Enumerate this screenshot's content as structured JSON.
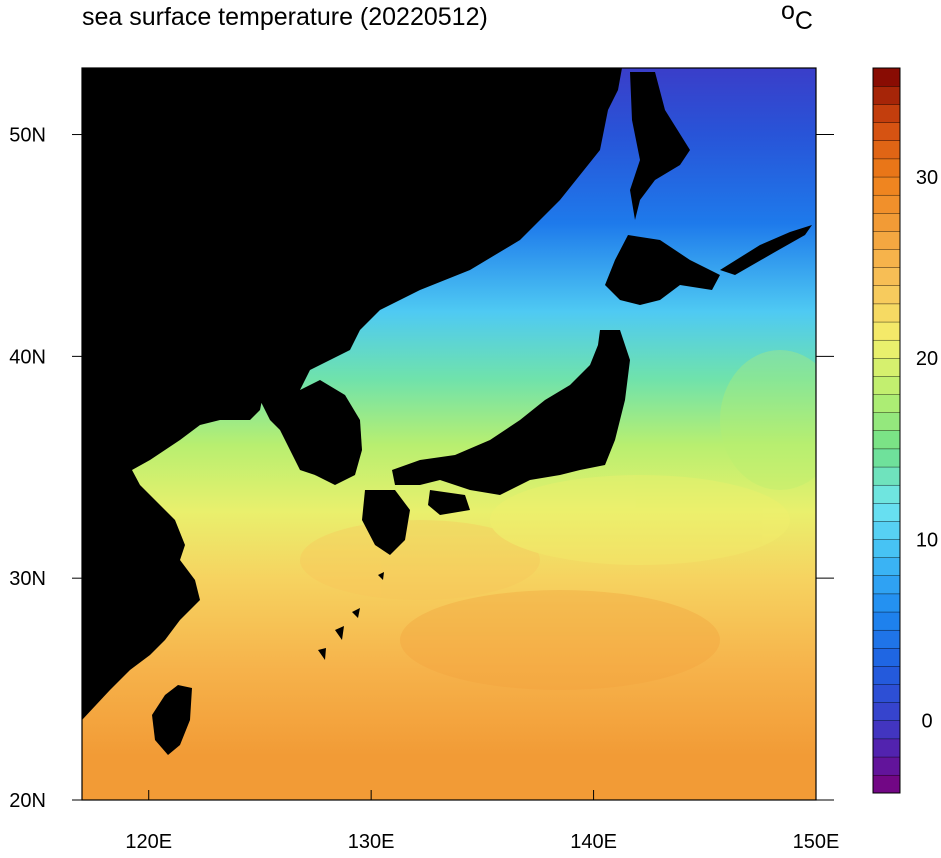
{
  "title": "sea surface temperature (20220512)",
  "units": {
    "prefix": "o",
    "main": "C"
  },
  "map": {
    "lon_range": [
      117,
      150
    ],
    "lat_range": [
      20,
      53
    ],
    "lon_ticks": [
      {
        "value": 120,
        "label": "120E"
      },
      {
        "value": 130,
        "label": "130E"
      },
      {
        "value": 140,
        "label": "140E"
      },
      {
        "value": 150,
        "label": "150E"
      }
    ],
    "lat_ticks": [
      {
        "value": 20,
        "label": "20N"
      },
      {
        "value": 30,
        "label": "30N"
      },
      {
        "value": 40,
        "label": "40N"
      },
      {
        "value": 50,
        "label": "50N"
      }
    ],
    "land_color": "#000000",
    "field_description_bands": [
      {
        "lat": 22,
        "temp": 27.5
      },
      {
        "lat": 26,
        "temp": 25.5
      },
      {
        "lat": 30,
        "temp": 23.0
      },
      {
        "lat": 33,
        "temp": 20.5
      },
      {
        "lat": 36,
        "temp": 18.0
      },
      {
        "lat": 39,
        "temp": 14.0
      },
      {
        "lat": 42,
        "temp": 10.0
      },
      {
        "lat": 46,
        "temp": 5.0
      },
      {
        "lat": 50,
        "temp": 2.0
      },
      {
        "lat": 53,
        "temp": 0.0
      }
    ]
  },
  "colorbar": {
    "min": -4,
    "max": 36,
    "step": 1,
    "labels": [
      {
        "value": 0,
        "label": "0"
      },
      {
        "value": 10,
        "label": "10"
      },
      {
        "value": 20,
        "label": "20"
      },
      {
        "value": 30,
        "label": "30"
      }
    ],
    "stops": [
      {
        "value": -4,
        "color": "#7a007a"
      },
      {
        "value": -2,
        "color": "#5a1aa6"
      },
      {
        "value": 0,
        "color": "#3a3ec9"
      },
      {
        "value": 3,
        "color": "#1f5fe0"
      },
      {
        "value": 6,
        "color": "#1e88f0"
      },
      {
        "value": 9,
        "color": "#3fbcf5"
      },
      {
        "value": 12,
        "color": "#6fe6f0"
      },
      {
        "value": 15,
        "color": "#6fe08a"
      },
      {
        "value": 18,
        "color": "#b8ef70"
      },
      {
        "value": 21,
        "color": "#f3f06c"
      },
      {
        "value": 24,
        "color": "#f8c45a"
      },
      {
        "value": 27,
        "color": "#f3a13c"
      },
      {
        "value": 30,
        "color": "#ee7f1a"
      },
      {
        "value": 33,
        "color": "#d14a10"
      },
      {
        "value": 36,
        "color": "#7a0000"
      }
    ]
  }
}
